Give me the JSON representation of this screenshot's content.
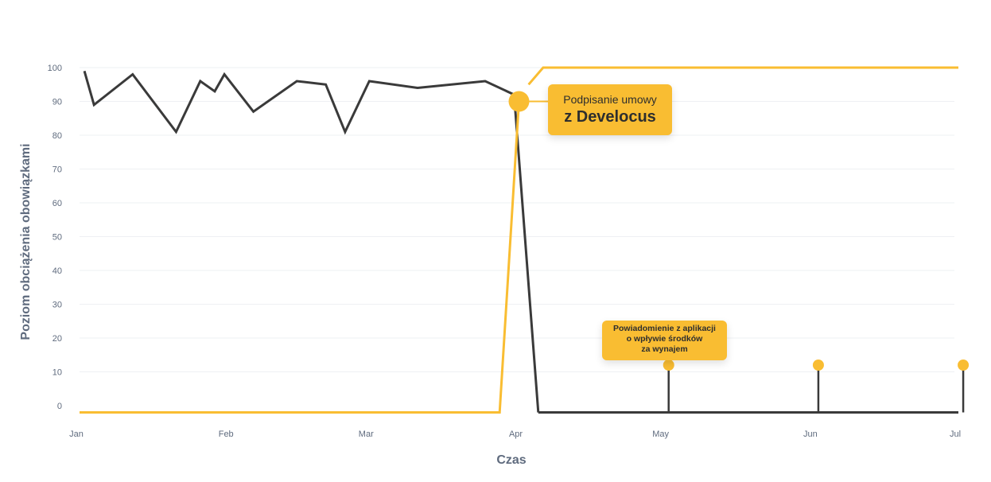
{
  "chart_data": {
    "type": "line",
    "title": "",
    "xlabel": "Czas",
    "ylabel": "Poziom obciążenia obowiązkami",
    "ylim": [
      0,
      100
    ],
    "yticks": [
      0,
      10,
      20,
      30,
      40,
      50,
      60,
      70,
      80,
      90,
      100
    ],
    "xlim": [
      "2000-01-01",
      "2000-07-01"
    ],
    "xticks": [
      {
        "label": "Jan",
        "date": "2000-01-01"
      },
      {
        "label": "Feb",
        "date": "2000-02-01"
      },
      {
        "label": "Mar",
        "date": "2000-03-01"
      },
      {
        "label": "Apr",
        "date": "2000-04-01"
      },
      {
        "label": "May",
        "date": "2000-05-01"
      },
      {
        "label": "Jun",
        "date": "2000-06-01"
      },
      {
        "label": "Jul",
        "date": "2000-07-01"
      }
    ],
    "grid": true,
    "legend": "none",
    "series": [
      {
        "color": "#3a3a3a",
        "x": [
          "2000-01-02",
          "2000-01-04",
          "2000-01-12",
          "2000-01-21",
          "2000-01-26",
          "2000-01-29",
          "2000-01-31",
          "2000-02-06",
          "2000-02-15",
          "2000-02-21",
          "2000-02-25",
          "2000-03-01",
          "2000-03-11",
          "2000-03-25",
          "2000-03-31",
          "2000-04-05"
        ],
        "values": [
          99,
          89,
          98,
          81,
          96,
          93,
          98,
          87,
          96,
          95,
          81,
          96,
          94,
          96,
          92,
          -2
        ]
      },
      {
        "color": "#3a3a3a",
        "x": [
          "2000-04-05",
          "2000-07-01"
        ],
        "values": [
          -2,
          -2
        ]
      },
      {
        "color": "#f9bd32",
        "x": [
          "2000-01-01",
          "2000-03-28",
          "2000-04-01"
        ],
        "values": [
          -2,
          -2,
          90
        ]
      },
      {
        "color": "#f9bd32",
        "x": [
          "2000-04-03",
          "2000-04-06",
          "2000-07-01"
        ],
        "values": [
          95,
          100,
          100
        ]
      }
    ],
    "markers": [
      {
        "x": "2000-04-01",
        "y": 90,
        "color": "#f9bd32",
        "size": "large"
      },
      {
        "x": "2000-05-02",
        "y": 12,
        "color": "#f9bd32",
        "size": "small",
        "stem": true
      },
      {
        "x": "2000-06-02",
        "y": 12,
        "color": "#f9bd32",
        "size": "small",
        "stem": true
      },
      {
        "x": "2000-07-02",
        "y": 12,
        "color": "#f9bd32",
        "size": "small",
        "stem": true
      }
    ],
    "annotations": [
      {
        "line1": "Podpisanie umowy",
        "line2": "z Develocus"
      },
      {
        "line1": "Powiadomienie z aplikacji",
        "line2": "o wpływie środków",
        "line3": "za wynajem"
      }
    ]
  }
}
